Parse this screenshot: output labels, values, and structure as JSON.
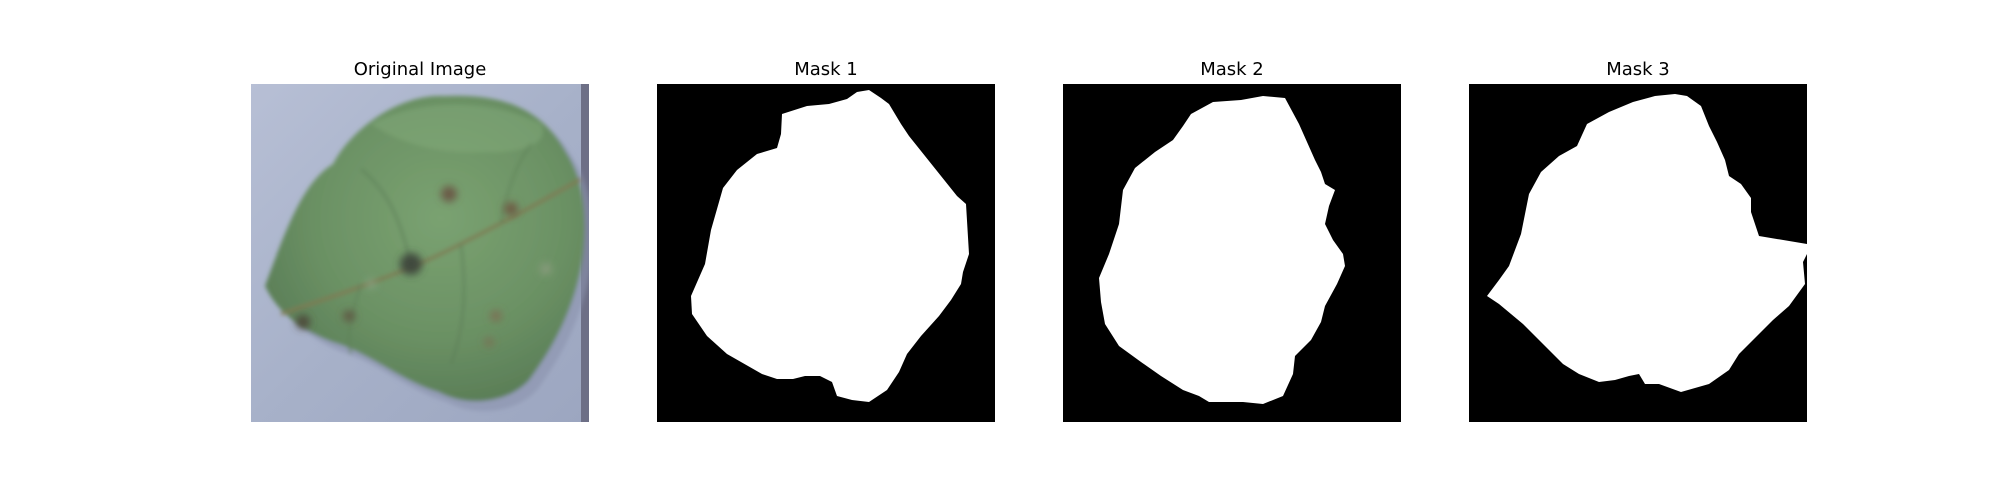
{
  "figure": {
    "panels": [
      {
        "title": "Original Image"
      },
      {
        "title": "Mask 1"
      },
      {
        "title": "Mask 2"
      },
      {
        "title": "Mask 3"
      }
    ]
  },
  "colors": {
    "mask_background": "#000000",
    "mask_foreground": "#ffffff",
    "photo_background": "#aab4cc",
    "leaf_green": "#6f9768"
  }
}
